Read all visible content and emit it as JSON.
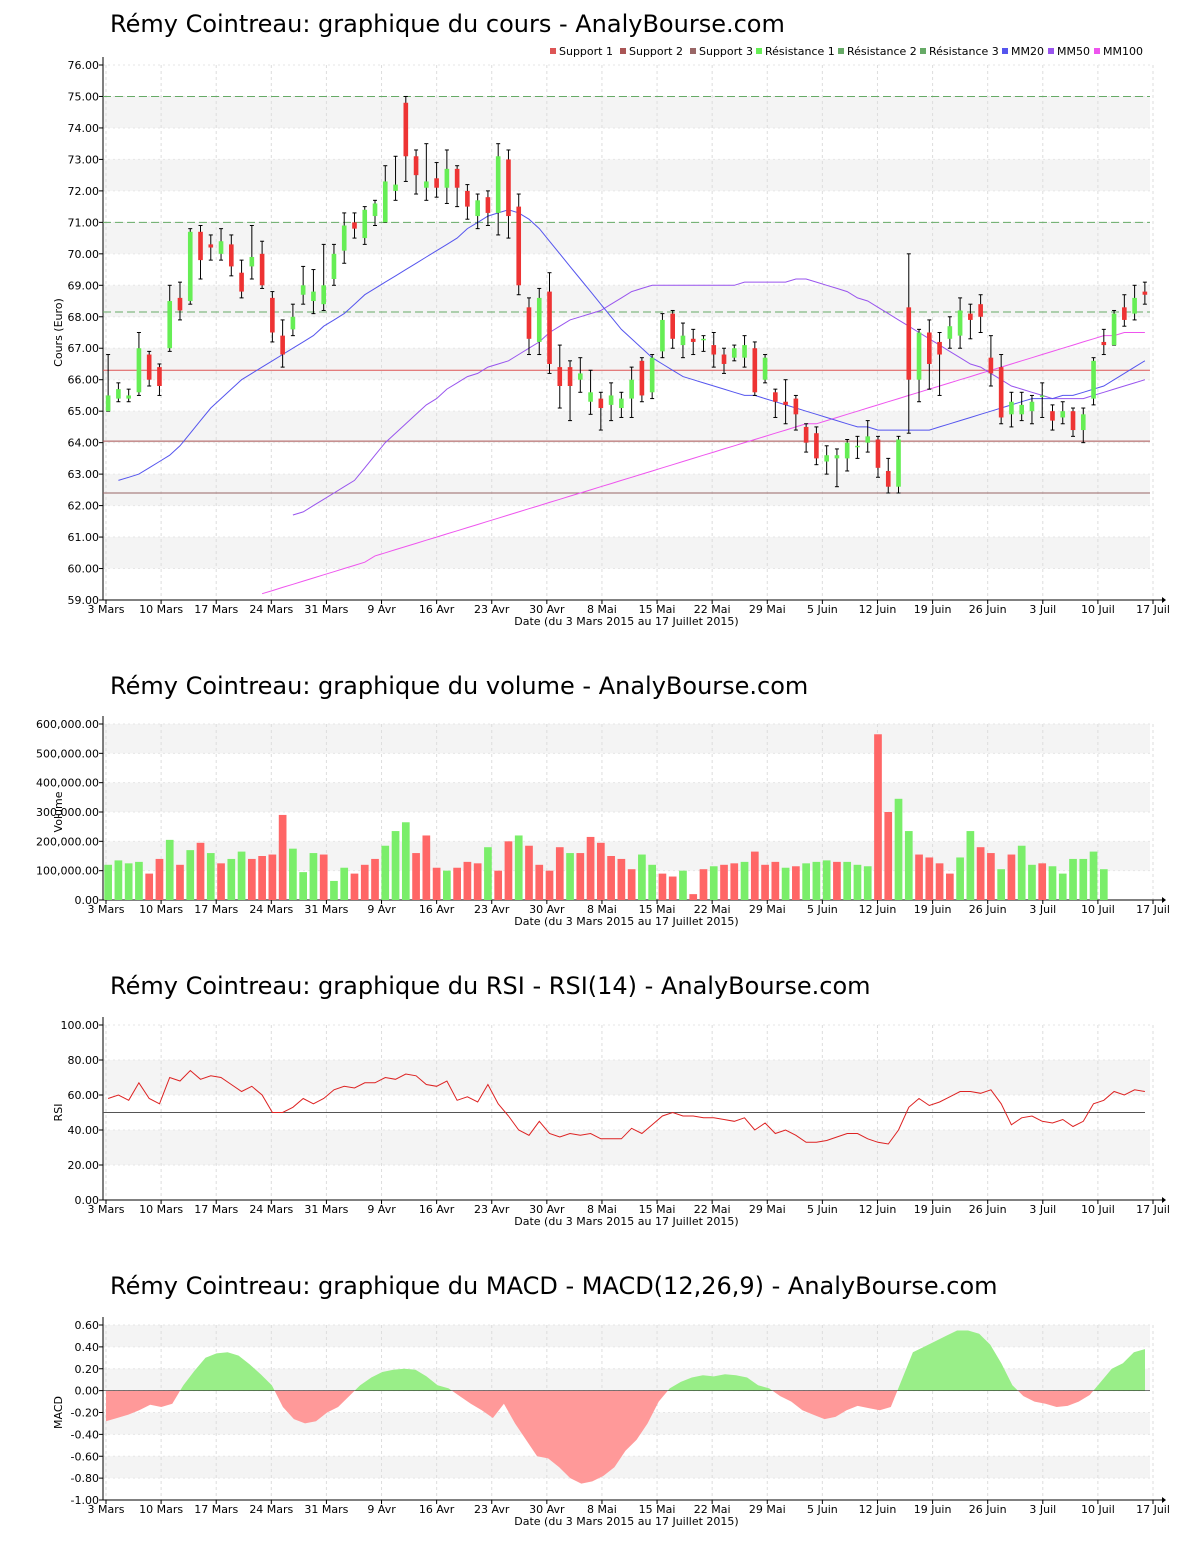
{
  "colors": {
    "up": "#66ee55",
    "down": "#ee3333",
    "vol_up": "#7aee6a",
    "vol_down": "#ff6666",
    "macd_pos": "#99ee88",
    "macd_neg": "#ff9999",
    "rsi_line": "#dd2222",
    "support1": "#dd5555",
    "support2": "#aa5555",
    "support3": "#996666",
    "resistance": "#66aa66",
    "mm20": "#5555ee",
    "mm50": "#9955ee",
    "mm100": "#ee55ee",
    "band": "#f4f4f4"
  },
  "x_labels": [
    "3 Mars",
    "10 Mars",
    "17 Mars",
    "24 Mars",
    "31 Mars",
    "9 Avr",
    "16 Avr",
    "23 Avr",
    "30 Avr",
    "8 Mai",
    "15 Mai",
    "22 Mai",
    "29 Mai",
    "5 Juin",
    "12 Juin",
    "19 Juin",
    "26 Juin",
    "3 Juil",
    "10 Juil",
    "17 Juil"
  ],
  "x_title": "Date (du 3 Mars 2015 au 17 Juillet 2015)",
  "chart_data": [
    {
      "type": "candlestick",
      "title": "Rémy Cointreau: graphique du cours - AnalyBourse.com",
      "ylabel": "Cours (Euro)",
      "ylim": [
        59,
        76
      ],
      "yticks": [
        "59.00",
        "60.00",
        "61.00",
        "62.00",
        "63.00",
        "64.00",
        "65.00",
        "66.00",
        "67.00",
        "68.00",
        "69.00",
        "70.00",
        "71.00",
        "72.00",
        "73.00",
        "74.00",
        "75.00",
        "76.00"
      ],
      "legend": [
        "Support 1",
        "Support 2",
        "Support 3",
        "Résistance 1",
        "Résistance 2",
        "Résistance 3",
        "MM20",
        "MM50",
        "MM100"
      ],
      "legend_position": "top-right",
      "levels": {
        "support1": 66.3,
        "support2": 64.05,
        "support3": 62.4,
        "resistance1": 68.15,
        "resistance2": 71.0,
        "resistance3": 75.0
      },
      "ohlc": [
        [
          65.0,
          65.5,
          65.0,
          66.8
        ],
        [
          65.4,
          65.7,
          65.3,
          65.9
        ],
        [
          65.4,
          65.5,
          65.3,
          65.7
        ],
        [
          65.6,
          67.0,
          65.5,
          67.5
        ],
        [
          66.8,
          66.0,
          65.8,
          66.9
        ],
        [
          66.4,
          65.8,
          65.5,
          66.5
        ],
        [
          67.0,
          68.5,
          66.9,
          69.0
        ],
        [
          68.6,
          68.2,
          67.9,
          69.1
        ],
        [
          68.5,
          70.7,
          68.4,
          70.8
        ],
        [
          70.7,
          69.8,
          69.2,
          70.9
        ],
        [
          70.3,
          70.2,
          69.8,
          70.6
        ],
        [
          70.0,
          70.4,
          69.8,
          70.8
        ],
        [
          70.3,
          69.6,
          69.3,
          70.6
        ],
        [
          69.4,
          68.8,
          68.6,
          69.8
        ],
        [
          69.6,
          69.9,
          69.2,
          70.9
        ],
        [
          70.0,
          69.0,
          68.9,
          70.4
        ],
        [
          68.6,
          67.5,
          67.2,
          68.8
        ],
        [
          67.4,
          66.8,
          66.4,
          67.9
        ],
        [
          67.6,
          68.0,
          67.4,
          68.4
        ],
        [
          68.7,
          69.0,
          68.4,
          69.6
        ],
        [
          68.5,
          68.8,
          68.1,
          69.5
        ],
        [
          68.4,
          69.0,
          68.2,
          70.3
        ],
        [
          69.2,
          70.0,
          69.0,
          70.3
        ],
        [
          70.1,
          70.9,
          69.7,
          71.3
        ],
        [
          71.0,
          70.8,
          70.5,
          71.3
        ],
        [
          70.5,
          71.4,
          70.3,
          71.5
        ],
        [
          71.2,
          71.6,
          70.9,
          71.7
        ],
        [
          71.0,
          72.3,
          71.0,
          72.8
        ],
        [
          72.0,
          72.2,
          71.7,
          73.1
        ],
        [
          74.8,
          73.1,
          72.3,
          75.0
        ],
        [
          73.1,
          72.5,
          71.9,
          73.3
        ],
        [
          72.1,
          72.3,
          71.7,
          73.5
        ],
        [
          72.4,
          72.1,
          71.8,
          72.9
        ],
        [
          72.1,
          72.7,
          71.6,
          73.3
        ],
        [
          72.7,
          72.1,
          71.5,
          72.8
        ],
        [
          72.0,
          71.5,
          71.1,
          72.2
        ],
        [
          71.2,
          71.7,
          70.8,
          71.9
        ],
        [
          71.8,
          71.3,
          70.9,
          72.0
        ],
        [
          71.3,
          73.1,
          70.6,
          73.5
        ],
        [
          73.0,
          71.2,
          70.5,
          73.3
        ],
        [
          71.5,
          69.0,
          68.7,
          71.9
        ],
        [
          68.3,
          67.3,
          66.8,
          68.6
        ],
        [
          67.2,
          68.6,
          66.8,
          68.9
        ],
        [
          68.8,
          66.5,
          66.2,
          69.4
        ],
        [
          66.4,
          65.8,
          65.1,
          67.1
        ],
        [
          66.4,
          65.8,
          64.7,
          66.6
        ],
        [
          66.0,
          66.2,
          65.6,
          66.7
        ],
        [
          65.3,
          65.6,
          64.9,
          66.3
        ],
        [
          65.4,
          65.1,
          64.4,
          65.6
        ],
        [
          65.2,
          65.5,
          64.7,
          65.9
        ],
        [
          65.1,
          65.4,
          64.8,
          65.6
        ],
        [
          65.4,
          66.0,
          64.8,
          66.4
        ],
        [
          66.6,
          65.5,
          65.3,
          66.7
        ],
        [
          65.6,
          66.7,
          65.4,
          66.8
        ],
        [
          66.9,
          67.9,
          66.7,
          68.1
        ],
        [
          68.1,
          67.3,
          67.0,
          68.2
        ],
        [
          67.1,
          67.4,
          66.7,
          67.8
        ],
        [
          67.3,
          67.2,
          66.8,
          67.6
        ],
        [
          67.3,
          67.3,
          66.9,
          67.4
        ],
        [
          67.1,
          66.8,
          66.4,
          67.5
        ],
        [
          66.8,
          66.5,
          66.2,
          67.0
        ],
        [
          66.7,
          67.0,
          66.6,
          67.1
        ],
        [
          66.7,
          67.1,
          66.4,
          67.4
        ],
        [
          67.0,
          65.6,
          65.5,
          67.2
        ],
        [
          66.0,
          66.7,
          65.9,
          66.8
        ],
        [
          65.6,
          65.3,
          64.8,
          65.7
        ],
        [
          65.3,
          65.2,
          64.6,
          66.0
        ],
        [
          65.4,
          64.9,
          64.4,
          65.5
        ],
        [
          64.5,
          64.0,
          63.7,
          64.6
        ],
        [
          64.3,
          63.5,
          63.3,
          64.5
        ],
        [
          63.4,
          63.6,
          63.0,
          63.9
        ],
        [
          63.5,
          63.6,
          62.6,
          63.8
        ],
        [
          63.5,
          64.0,
          63.1,
          64.1
        ],
        [
          63.9,
          63.9,
          63.5,
          64.2
        ],
        [
          64.0,
          64.2,
          63.7,
          64.7
        ],
        [
          64.1,
          63.2,
          62.9,
          64.2
        ],
        [
          63.1,
          62.6,
          62.4,
          63.5
        ],
        [
          62.6,
          64.1,
          62.4,
          64.2
        ],
        [
          68.3,
          66.0,
          64.3,
          70.0
        ],
        [
          66.0,
          67.5,
          65.3,
          67.6
        ],
        [
          67.5,
          66.5,
          65.7,
          67.9
        ],
        [
          67.2,
          66.8,
          65.5,
          67.5
        ],
        [
          67.3,
          67.7,
          67.0,
          68.0
        ],
        [
          67.4,
          68.2,
          67.0,
          68.6
        ],
        [
          68.1,
          67.9,
          67.3,
          68.4
        ],
        [
          68.4,
          68.0,
          67.5,
          68.7
        ],
        [
          66.7,
          66.2,
          65.8,
          67.4
        ],
        [
          66.4,
          64.8,
          64.6,
          66.8
        ],
        [
          64.9,
          65.3,
          64.5,
          65.6
        ],
        [
          64.9,
          65.2,
          64.7,
          65.6
        ],
        [
          65.0,
          65.3,
          64.6,
          65.5
        ],
        [
          65.5,
          65.5,
          64.8,
          65.9
        ],
        [
          65.0,
          64.7,
          64.4,
          65.2
        ],
        [
          64.8,
          65.0,
          64.6,
          65.3
        ],
        [
          65.0,
          64.4,
          64.2,
          65.1
        ],
        [
          64.4,
          64.9,
          64.0,
          65.1
        ],
        [
          65.4,
          66.6,
          65.2,
          66.7
        ],
        [
          67.2,
          67.1,
          66.8,
          67.6
        ],
        [
          67.1,
          68.1,
          67.1,
          68.2
        ],
        [
          68.3,
          67.9,
          67.7,
          68.7
        ],
        [
          68.1,
          68.6,
          67.9,
          69.0
        ],
        [
          68.8,
          68.7,
          68.4,
          69.1
        ]
      ],
      "mm20": [
        62.8,
        62.9,
        63.0,
        63.2,
        63.4,
        63.6,
        63.9,
        64.3,
        64.7,
        65.1,
        65.4,
        65.7,
        66.0,
        66.2,
        66.4,
        66.6,
        66.8,
        67.0,
        67.2,
        67.4,
        67.7,
        67.9,
        68.1,
        68.4,
        68.7,
        68.9,
        69.1,
        69.3,
        69.5,
        69.7,
        69.9,
        70.1,
        70.3,
        70.5,
        70.8,
        71.0,
        71.2,
        71.3,
        71.4,
        71.3,
        71.1,
        70.8,
        70.4,
        70.0,
        69.6,
        69.2,
        68.8,
        68.4,
        68.0,
        67.6,
        67.3,
        67.0,
        66.7,
        66.5,
        66.3,
        66.1,
        66.0,
        65.9,
        65.8,
        65.7,
        65.6,
        65.5,
        65.5,
        65.4,
        65.3,
        65.2,
        65.1,
        65.0,
        64.9,
        64.8,
        64.7,
        64.6,
        64.5,
        64.5,
        64.4,
        64.4,
        64.4,
        64.4,
        64.4,
        64.4,
        64.5,
        64.6,
        64.7,
        64.8,
        64.9,
        65.0,
        65.1,
        65.2,
        65.3,
        65.4,
        65.4,
        65.4,
        65.5,
        65.5,
        65.6,
        65.7,
        65.8,
        66.0,
        66.2,
        66.4,
        66.6
      ],
      "mm50": [
        61.7,
        61.8,
        62.0,
        62.2,
        62.4,
        62.6,
        62.8,
        63.2,
        63.6,
        64.0,
        64.3,
        64.6,
        64.9,
        65.2,
        65.4,
        65.7,
        65.9,
        66.1,
        66.2,
        66.4,
        66.5,
        66.6,
        66.8,
        67.0,
        67.2,
        67.5,
        67.7,
        67.9,
        68.0,
        68.1,
        68.2,
        68.4,
        68.6,
        68.8,
        68.9,
        69.0,
        69.0,
        69.0,
        69.0,
        69.0,
        69.0,
        69.0,
        69.0,
        69.0,
        69.1,
        69.1,
        69.1,
        69.1,
        69.1,
        69.2,
        69.2,
        69.1,
        69.0,
        68.9,
        68.8,
        68.6,
        68.5,
        68.3,
        68.1,
        67.9,
        67.7,
        67.5,
        67.3,
        67.1,
        66.9,
        66.7,
        66.5,
        66.4,
        66.2,
        66.0,
        65.8,
        65.7,
        65.6,
        65.5,
        65.4,
        65.4,
        65.4,
        65.4,
        65.5,
        65.6,
        65.7,
        65.8,
        65.9,
        66.0
      ],
      "mm100": [
        59.2,
        59.3,
        59.4,
        59.5,
        59.6,
        59.7,
        59.8,
        59.9,
        60.0,
        60.1,
        60.2,
        60.4,
        60.5,
        60.6,
        60.7,
        60.8,
        60.9,
        61.0,
        61.1,
        61.2,
        61.3,
        61.4,
        61.5,
        61.6,
        61.7,
        61.8,
        61.9,
        62.0,
        62.1,
        62.2,
        62.3,
        62.4,
        62.5,
        62.6,
        62.7,
        62.8,
        62.9,
        63.0,
        63.1,
        63.2,
        63.3,
        63.4,
        63.5,
        63.6,
        63.7,
        63.8,
        63.9,
        64.0,
        64.1,
        64.2,
        64.3,
        64.4,
        64.5,
        64.6,
        64.6,
        64.7,
        64.8,
        64.9,
        65.0,
        65.1,
        65.2,
        65.3,
        65.4,
        65.5,
        65.6,
        65.7,
        65.8,
        65.9,
        66.0,
        66.1,
        66.2,
        66.3,
        66.4,
        66.5,
        66.6,
        66.7,
        66.8,
        66.9,
        67.0,
        67.1,
        67.2,
        67.3,
        67.4,
        67.4,
        67.5,
        67.5,
        67.5
      ],
      "x_labels_ref": "x_labels"
    },
    {
      "type": "bar",
      "title": "Rémy Cointreau: graphique du volume - AnalyBourse.com",
      "ylabel": "Volume",
      "ylim": [
        0,
        600000
      ],
      "yticks": [
        "0.00",
        "100,000.00",
        "200,000.00",
        "300,000.00",
        "400,000.00",
        "500,000.00",
        "600,000.00"
      ],
      "values": [
        120000,
        135000,
        125000,
        130000,
        90000,
        140000,
        205000,
        120000,
        170000,
        195000,
        160000,
        125000,
        140000,
        165000,
        140000,
        150000,
        155000,
        290000,
        175000,
        95000,
        160000,
        155000,
        65000,
        110000,
        90000,
        120000,
        140000,
        185000,
        235000,
        265000,
        160000,
        220000,
        110000,
        100000,
        110000,
        130000,
        125000,
        180000,
        100000,
        200000,
        220000,
        185000,
        120000,
        100000,
        180000,
        160000,
        160000,
        215000,
        195000,
        150000,
        140000,
        105000,
        155000,
        120000,
        90000,
        80000,
        100000,
        20000,
        105000,
        115000,
        120000,
        125000,
        130000,
        165000,
        120000,
        130000,
        110000,
        115000,
        125000,
        130000,
        135000,
        130000,
        130000,
        120000,
        115000,
        565000,
        300000,
        345000,
        235000,
        155000,
        145000,
        125000,
        90000,
        145000,
        235000,
        180000,
        160000,
        105000,
        155000,
        185000,
        120000,
        125000,
        115000,
        90000,
        140000,
        140000,
        165000,
        105000
      ],
      "colors_updown": "uuuuddudududuudddduuuduuddduuudddudddudduddddudddddduudduddudduddduduuuduuudduudddduudduduudu"
    },
    {
      "type": "line",
      "title": "Rémy Cointreau: graphique du RSI - RSI(14) - AnalyBourse.com",
      "ylabel": "RSI",
      "ylim": [
        0,
        100
      ],
      "yticks": [
        "0.00",
        "20.00",
        "40.00",
        "60.00",
        "80.00",
        "100.00"
      ],
      "reference": 50,
      "values": [
        58,
        60,
        57,
        67,
        58,
        55,
        70,
        68,
        74,
        69,
        71,
        70,
        66,
        62,
        65,
        60,
        50,
        50,
        53,
        58,
        55,
        58,
        63,
        65,
        64,
        67,
        67,
        70,
        69,
        72,
        71,
        66,
        65,
        68,
        57,
        59,
        56,
        66,
        55,
        48,
        40,
        37,
        45,
        38,
        36,
        38,
        37,
        38,
        35,
        35,
        35,
        41,
        38,
        43,
        48,
        50,
        48,
        48,
        47,
        47,
        46,
        45,
        47,
        40,
        44,
        38,
        40,
        37,
        33,
        33,
        34,
        36,
        38,
        38,
        35,
        33,
        32,
        40,
        53,
        58,
        54,
        56,
        59,
        62,
        62,
        61,
        63,
        55,
        43,
        47,
        48,
        45,
        44,
        46,
        42,
        45,
        55,
        57,
        62,
        60,
        63,
        62
      ]
    },
    {
      "type": "area",
      "title": "Rémy Cointreau: graphique du MACD - MACD(12,26,9) - AnalyBourse.com",
      "ylabel": "MACD",
      "ylim": [
        -1.0,
        0.6
      ],
      "yticks": [
        "-1.00",
        "-0.80",
        "-0.60",
        "-0.40",
        "-0.20",
        "0.00",
        "0.20",
        "0.40",
        "0.60"
      ],
      "values": [
        -0.28,
        -0.25,
        -0.22,
        -0.18,
        -0.13,
        -0.15,
        -0.12,
        0.05,
        0.18,
        0.3,
        0.34,
        0.35,
        0.32,
        0.24,
        0.15,
        0.05,
        -0.15,
        -0.26,
        -0.3,
        -0.28,
        -0.2,
        -0.15,
        -0.05,
        0.05,
        0.12,
        0.17,
        0.19,
        0.2,
        0.19,
        0.13,
        0.05,
        0.02,
        -0.05,
        -0.12,
        -0.18,
        -0.25,
        -0.12,
        -0.3,
        -0.45,
        -0.6,
        -0.62,
        -0.7,
        -0.8,
        -0.85,
        -0.83,
        -0.78,
        -0.7,
        -0.55,
        -0.45,
        -0.3,
        -0.1,
        0.02,
        0.08,
        0.12,
        0.14,
        0.13,
        0.15,
        0.14,
        0.12,
        0.05,
        0.02,
        -0.05,
        -0.1,
        -0.18,
        -0.22,
        -0.26,
        -0.24,
        -0.18,
        -0.14,
        -0.16,
        -0.18,
        -0.15,
        0.1,
        0.35,
        0.4,
        0.45,
        0.5,
        0.55,
        0.55,
        0.52,
        0.42,
        0.25,
        0.05,
        -0.05,
        -0.1,
        -0.12,
        -0.15,
        -0.14,
        -0.1,
        -0.04,
        0.08,
        0.2,
        0.25,
        0.35,
        0.38
      ]
    }
  ],
  "titles": {
    "price": "Rémy Cointreau: graphique du cours - AnalyBourse.com",
    "volume": "Rémy Cointreau: graphique du volume - AnalyBourse.com",
    "rsi": "Rémy Cointreau: graphique du RSI - RSI(14) - AnalyBourse.com",
    "macd": "Rémy Cointreau: graphique du MACD - MACD(12,26,9) - AnalyBourse.com"
  }
}
